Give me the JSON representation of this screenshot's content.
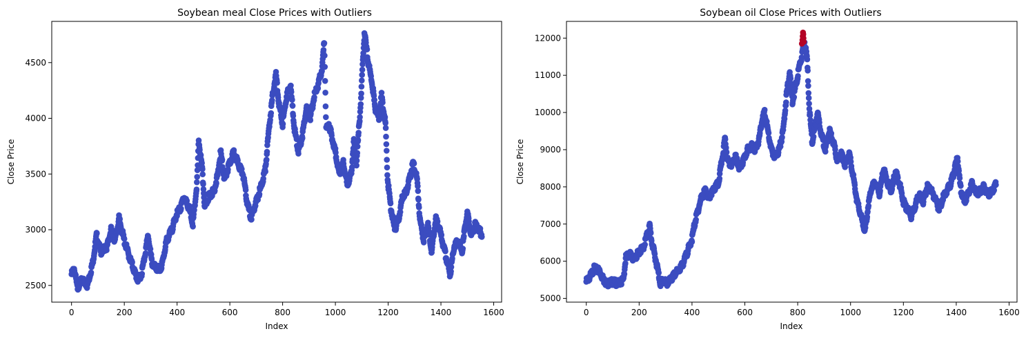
{
  "chart_data": [
    {
      "type": "scatter",
      "title": "Soybean meal Close Prices with Outliers",
      "xlabel": "Index",
      "ylabel": "Close Price",
      "xlim": [
        -75,
        1630
      ],
      "ylim": [
        2350,
        4870
      ],
      "xticks": [
        "0",
        "200",
        "400",
        "600",
        "800",
        "1000",
        "1200",
        "1400",
        "1600"
      ],
      "yticks": [
        "2500",
        "3000",
        "3500",
        "4000",
        "4500"
      ],
      "grid": false,
      "colors": {
        "normal": "#3b4cc0",
        "outlier": "#b40426"
      },
      "anchors": [
        [
          0,
          2600
        ],
        [
          10,
          2650
        ],
        [
          22,
          2480
        ],
        [
          40,
          2550
        ],
        [
          60,
          2500
        ],
        [
          80,
          2700
        ],
        [
          95,
          2950
        ],
        [
          110,
          2800
        ],
        [
          135,
          2850
        ],
        [
          150,
          3000
        ],
        [
          165,
          2900
        ],
        [
          180,
          3100
        ],
        [
          200,
          2900
        ],
        [
          220,
          2750
        ],
        [
          235,
          2650
        ],
        [
          250,
          2550
        ],
        [
          265,
          2600
        ],
        [
          280,
          2800
        ],
        [
          290,
          2950
        ],
        [
          305,
          2700
        ],
        [
          320,
          2650
        ],
        [
          340,
          2650
        ],
        [
          360,
          2900
        ],
        [
          380,
          3000
        ],
        [
          400,
          3150
        ],
        [
          415,
          3200
        ],
        [
          425,
          3300
        ],
        [
          445,
          3200
        ],
        [
          460,
          3050
        ],
        [
          475,
          3400
        ],
        [
          482,
          3800
        ],
        [
          495,
          3550
        ],
        [
          505,
          3200
        ],
        [
          520,
          3300
        ],
        [
          540,
          3350
        ],
        [
          555,
          3500
        ],
        [
          565,
          3700
        ],
        [
          580,
          3450
        ],
        [
          600,
          3600
        ],
        [
          615,
          3700
        ],
        [
          630,
          3600
        ],
        [
          650,
          3500
        ],
        [
          665,
          3250
        ],
        [
          680,
          3100
        ],
        [
          700,
          3250
        ],
        [
          720,
          3400
        ],
        [
          735,
          3550
        ],
        [
          748,
          3900
        ],
        [
          762,
          4200
        ],
        [
          775,
          4400
        ],
        [
          785,
          4150
        ],
        [
          800,
          3950
        ],
        [
          815,
          4200
        ],
        [
          830,
          4300
        ],
        [
          845,
          3900
        ],
        [
          860,
          3700
        ],
        [
          875,
          3850
        ],
        [
          890,
          4100
        ],
        [
          905,
          4000
        ],
        [
          920,
          4200
        ],
        [
          935,
          4300
        ],
        [
          950,
          4450
        ],
        [
          958,
          4700
        ],
        [
          965,
          3900
        ],
        [
          975,
          3950
        ],
        [
          985,
          3850
        ],
        [
          1000,
          3700
        ],
        [
          1015,
          3500
        ],
        [
          1030,
          3600
        ],
        [
          1045,
          3400
        ],
        [
          1060,
          3500
        ],
        [
          1070,
          3800
        ],
        [
          1080,
          3600
        ],
        [
          1095,
          4100
        ],
        [
          1110,
          4770
        ],
        [
          1125,
          4500
        ],
        [
          1140,
          4300
        ],
        [
          1150,
          4100
        ],
        [
          1165,
          4000
        ],
        [
          1175,
          4200
        ],
        [
          1190,
          3950
        ],
        [
          1198,
          3450
        ],
        [
          1210,
          3200
        ],
        [
          1225,
          3000
        ],
        [
          1240,
          3100
        ],
        [
          1255,
          3300
        ],
        [
          1270,
          3350
        ],
        [
          1285,
          3500
        ],
        [
          1295,
          3600
        ],
        [
          1310,
          3450
        ],
        [
          1320,
          3100
        ],
        [
          1335,
          2900
        ],
        [
          1350,
          3050
        ],
        [
          1365,
          2800
        ],
        [
          1380,
          3100
        ],
        [
          1395,
          3000
        ],
        [
          1410,
          2850
        ],
        [
          1425,
          2700
        ],
        [
          1435,
          2600
        ],
        [
          1450,
          2850
        ],
        [
          1465,
          2900
        ],
        [
          1480,
          2800
        ],
        [
          1490,
          3000
        ],
        [
          1500,
          3150
        ],
        [
          1515,
          2950
        ],
        [
          1530,
          3050
        ],
        [
          1545,
          3000
        ],
        [
          1555,
          2950
        ]
      ],
      "outliers": []
    },
    {
      "type": "scatter",
      "title": "Soybean oil Close Prices with Outliers",
      "xlabel": "Index",
      "ylabel": "Close Price",
      "xlim": [
        -75,
        1630
      ],
      "ylim": [
        4900,
        12450
      ],
      "xticks": [
        "0",
        "200",
        "400",
        "600",
        "800",
        "1000",
        "1200",
        "1400",
        "1600"
      ],
      "yticks": [
        "5000",
        "6000",
        "7000",
        "8000",
        "9000",
        "10000",
        "11000",
        "12000"
      ],
      "grid": false,
      "colors": {
        "normal": "#3b4cc0",
        "outlier": "#b40426"
      },
      "anchors": [
        [
          0,
          5450
        ],
        [
          15,
          5600
        ],
        [
          30,
          5800
        ],
        [
          50,
          5750
        ],
        [
          65,
          5500
        ],
        [
          80,
          5400
        ],
        [
          100,
          5450
        ],
        [
          120,
          5400
        ],
        [
          140,
          5500
        ],
        [
          150,
          6100
        ],
        [
          165,
          6200
        ],
        [
          180,
          6050
        ],
        [
          200,
          6250
        ],
        [
          215,
          6350
        ],
        [
          230,
          6700
        ],
        [
          240,
          6950
        ],
        [
          248,
          6500
        ],
        [
          258,
          6200
        ],
        [
          270,
          5800
        ],
        [
          280,
          5400
        ],
        [
          290,
          5500
        ],
        [
          305,
          5400
        ],
        [
          320,
          5500
        ],
        [
          340,
          5700
        ],
        [
          355,
          5800
        ],
        [
          370,
          6000
        ],
        [
          385,
          6300
        ],
        [
          400,
          6600
        ],
        [
          410,
          7000
        ],
        [
          420,
          7300
        ],
        [
          435,
          7700
        ],
        [
          450,
          7900
        ],
        [
          465,
          7700
        ],
        [
          480,
          7900
        ],
        [
          500,
          8100
        ],
        [
          515,
          8800
        ],
        [
          525,
          9300
        ],
        [
          535,
          8700
        ],
        [
          550,
          8600
        ],
        [
          565,
          8800
        ],
        [
          580,
          8500
        ],
        [
          595,
          8700
        ],
        [
          610,
          9000
        ],
        [
          625,
          9100
        ],
        [
          640,
          9000
        ],
        [
          655,
          9300
        ],
        [
          665,
          9800
        ],
        [
          675,
          10000
        ],
        [
          690,
          9400
        ],
        [
          700,
          9000
        ],
        [
          715,
          8800
        ],
        [
          730,
          9000
        ],
        [
          745,
          9500
        ],
        [
          758,
          10500
        ],
        [
          770,
          11100
        ],
        [
          780,
          10300
        ],
        [
          795,
          10800
        ],
        [
          808,
          11300
        ],
        [
          815,
          11500
        ],
        [
          826,
          11900
        ],
        [
          835,
          11500
        ],
        [
          845,
          10000
        ],
        [
          855,
          9200
        ],
        [
          865,
          9600
        ],
        [
          875,
          10000
        ],
        [
          890,
          9400
        ],
        [
          905,
          9000
        ],
        [
          920,
          9500
        ],
        [
          935,
          9200
        ],
        [
          950,
          8700
        ],
        [
          965,
          8900
        ],
        [
          980,
          8600
        ],
        [
          995,
          8900
        ],
        [
          1010,
          8300
        ],
        [
          1025,
          7600
        ],
        [
          1040,
          7200
        ],
        [
          1055,
          6800
        ],
        [
          1065,
          7400
        ],
        [
          1080,
          8000
        ],
        [
          1095,
          8100
        ],
        [
          1110,
          7800
        ],
        [
          1125,
          8500
        ],
        [
          1140,
          8100
        ],
        [
          1155,
          7900
        ],
        [
          1170,
          8400
        ],
        [
          1185,
          8100
        ],
        [
          1200,
          7600
        ],
        [
          1215,
          7400
        ],
        [
          1230,
          7200
        ],
        [
          1245,
          7500
        ],
        [
          1260,
          7800
        ],
        [
          1275,
          7600
        ],
        [
          1290,
          8000
        ],
        [
          1305,
          7900
        ],
        [
          1320,
          7700
        ],
        [
          1335,
          7400
        ],
        [
          1350,
          7700
        ],
        [
          1365,
          7900
        ],
        [
          1380,
          8100
        ],
        [
          1395,
          8500
        ],
        [
          1405,
          8800
        ],
        [
          1415,
          8000
        ],
        [
          1430,
          7600
        ],
        [
          1445,
          7800
        ],
        [
          1460,
          8100
        ],
        [
          1475,
          7800
        ],
        [
          1490,
          7900
        ],
        [
          1505,
          8000
        ],
        [
          1520,
          7800
        ],
        [
          1535,
          7900
        ],
        [
          1550,
          8050
        ]
      ],
      "outliers": [
        [
          816,
          11850
        ],
        [
          818,
          11950
        ],
        [
          819,
          12050
        ],
        [
          820,
          12150
        ],
        [
          821,
          12100
        ],
        [
          822,
          12000
        ],
        [
          823,
          11900
        ]
      ]
    }
  ]
}
